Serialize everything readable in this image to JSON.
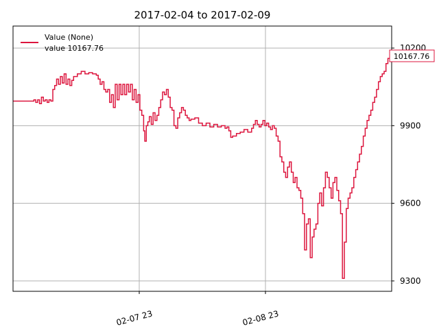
{
  "chart_data": {
    "type": "line",
    "title": "2017-02-04 to 2017-02-09",
    "xlabel": "",
    "ylabel": "",
    "x_tick_labels": [
      "02-07 23",
      "02-08 23"
    ],
    "y_ticks": [
      9300,
      9600,
      9900,
      10200
    ],
    "ylim": [
      9260,
      10285
    ],
    "grid": true,
    "legend": {
      "placement": "top-left",
      "entries": [
        "Value (None)",
        "value 10167.76"
      ]
    },
    "last_value_label": "10167.76",
    "series": [
      {
        "name": "Value (None)",
        "color": "#dc143c",
        "x_range": [
          0,
          100
        ],
        "points": [
          [
            0,
            9995
          ],
          [
            5.0,
            9995
          ],
          [
            5.5,
            10000
          ],
          [
            6.0,
            9990
          ],
          [
            6.5,
            10000
          ],
          [
            7.0,
            9985
          ],
          [
            7.5,
            10010
          ],
          [
            8.0,
            9995
          ],
          [
            8.5,
            10000
          ],
          [
            9.0,
            9990
          ],
          [
            9.5,
            10000
          ],
          [
            10.0,
            9995
          ],
          [
            10.5,
            10040
          ],
          [
            11.0,
            10055
          ],
          [
            11.5,
            10080
          ],
          [
            12.0,
            10060
          ],
          [
            12.5,
            10090
          ],
          [
            13.0,
            10065
          ],
          [
            13.5,
            10100
          ],
          [
            14.0,
            10060
          ],
          [
            14.5,
            10080
          ],
          [
            15.0,
            10055
          ],
          [
            15.5,
            10075
          ],
          [
            16.0,
            10090
          ],
          [
            17.0,
            10100
          ],
          [
            18.0,
            10110
          ],
          [
            19.0,
            10100
          ],
          [
            20.0,
            10105
          ],
          [
            21.0,
            10100
          ],
          [
            22.0,
            10095
          ],
          [
            22.5,
            10080
          ],
          [
            23.0,
            10060
          ],
          [
            23.5,
            10070
          ],
          [
            24.0,
            10040
          ],
          [
            24.5,
            10030
          ],
          [
            25.0,
            10040
          ],
          [
            25.5,
            9990
          ],
          [
            26.0,
            10020
          ],
          [
            26.5,
            9970
          ],
          [
            27.0,
            10060
          ],
          [
            27.5,
            10000
          ],
          [
            28.0,
            10060
          ],
          [
            28.5,
            10020
          ],
          [
            29.0,
            10060
          ],
          [
            29.5,
            10020
          ],
          [
            30.0,
            10060
          ],
          [
            30.5,
            10030
          ],
          [
            31.0,
            10060
          ],
          [
            31.5,
            10000
          ],
          [
            32.0,
            10040
          ],
          [
            32.5,
            9990
          ],
          [
            33.0,
            10020
          ],
          [
            33.5,
            9960
          ],
          [
            34.0,
            9940
          ],
          [
            34.5,
            9880
          ],
          [
            34.8,
            9840
          ],
          [
            35.2,
            9900
          ],
          [
            35.6,
            9915
          ],
          [
            36.0,
            9935
          ],
          [
            36.5,
            9905
          ],
          [
            37.0,
            9950
          ],
          [
            37.5,
            9920
          ],
          [
            38.0,
            9940
          ],
          [
            38.5,
            9970
          ],
          [
            39.0,
            10000
          ],
          [
            39.5,
            10030
          ],
          [
            40.0,
            10020
          ],
          [
            40.5,
            10040
          ],
          [
            41.0,
            10010
          ],
          [
            41.5,
            9970
          ],
          [
            42.0,
            9960
          ],
          [
            42.5,
            9900
          ],
          [
            43.0,
            9890
          ],
          [
            43.5,
            9930
          ],
          [
            44.0,
            9950
          ],
          [
            44.5,
            9970
          ],
          [
            45.0,
            9960
          ],
          [
            45.5,
            9940
          ],
          [
            46.0,
            9930
          ],
          [
            46.5,
            9920
          ],
          [
            47.0,
            9925
          ],
          [
            48.0,
            9930
          ],
          [
            49.0,
            9910
          ],
          [
            50.0,
            9900
          ],
          [
            51.0,
            9910
          ],
          [
            52.0,
            9895
          ],
          [
            53.0,
            9905
          ],
          [
            54.0,
            9895
          ],
          [
            55.0,
            9900
          ],
          [
            56.0,
            9890
          ],
          [
            56.5,
            9895
          ],
          [
            57.0,
            9880
          ],
          [
            57.5,
            9855
          ],
          [
            58.0,
            9860
          ],
          [
            59.0,
            9870
          ],
          [
            60.0,
            9875
          ],
          [
            61.0,
            9885
          ],
          [
            62.0,
            9875
          ],
          [
            63.0,
            9890
          ],
          [
            63.5,
            9905
          ],
          [
            64.0,
            9920
          ],
          [
            64.5,
            9905
          ],
          [
            65.0,
            9895
          ],
          [
            65.5,
            9905
          ],
          [
            66.0,
            9920
          ],
          [
            66.5,
            9900
          ],
          [
            67.0,
            9910
          ],
          [
            67.5,
            9895
          ],
          [
            68.0,
            9885
          ],
          [
            68.5,
            9900
          ],
          [
            69.0,
            9890
          ],
          [
            69.5,
            9860
          ],
          [
            70.0,
            9840
          ],
          [
            70.5,
            9780
          ],
          [
            71.0,
            9760
          ],
          [
            71.5,
            9720
          ],
          [
            72.0,
            9700
          ],
          [
            72.5,
            9740
          ],
          [
            73.0,
            9760
          ],
          [
            73.5,
            9720
          ],
          [
            74.0,
            9680
          ],
          [
            74.5,
            9700
          ],
          [
            75.0,
            9660
          ],
          [
            75.5,
            9650
          ],
          [
            76.0,
            9620
          ],
          [
            76.5,
            9560
          ],
          [
            77.0,
            9420
          ],
          [
            77.5,
            9520
          ],
          [
            78.0,
            9540
          ],
          [
            78.5,
            9390
          ],
          [
            79.0,
            9470
          ],
          [
            79.5,
            9500
          ],
          [
            80.0,
            9520
          ],
          [
            80.5,
            9600
          ],
          [
            81.0,
            9640
          ],
          [
            81.5,
            9590
          ],
          [
            82.0,
            9660
          ],
          [
            82.5,
            9720
          ],
          [
            83.0,
            9700
          ],
          [
            83.5,
            9660
          ],
          [
            84.0,
            9620
          ],
          [
            84.5,
            9680
          ],
          [
            85.0,
            9700
          ],
          [
            85.5,
            9650
          ],
          [
            86.0,
            9610
          ],
          [
            86.5,
            9560
          ],
          [
            87.0,
            9310
          ],
          [
            87.5,
            9450
          ],
          [
            88.0,
            9580
          ],
          [
            88.5,
            9620
          ],
          [
            89.0,
            9640
          ],
          [
            89.5,
            9660
          ],
          [
            90.0,
            9700
          ],
          [
            90.5,
            9730
          ],
          [
            91.0,
            9760
          ],
          [
            91.5,
            9790
          ],
          [
            92.0,
            9820
          ],
          [
            92.5,
            9860
          ],
          [
            93.0,
            9890
          ],
          [
            93.5,
            9920
          ],
          [
            94.0,
            9940
          ],
          [
            94.5,
            9960
          ],
          [
            95.0,
            9990
          ],
          [
            95.5,
            10010
          ],
          [
            96.0,
            10040
          ],
          [
            96.5,
            10070
          ],
          [
            97.0,
            10090
          ],
          [
            97.5,
            10100
          ],
          [
            98.0,
            10110
          ],
          [
            98.5,
            10140
          ],
          [
            99.0,
            10160
          ],
          [
            99.5,
            10165
          ],
          [
            100,
            10167.76
          ]
        ]
      }
    ]
  }
}
